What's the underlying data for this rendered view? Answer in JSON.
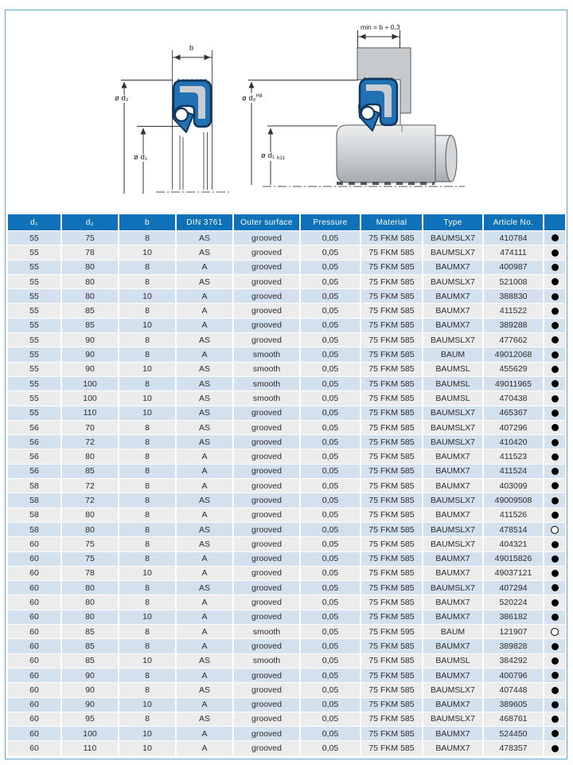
{
  "colors": {
    "header_bg": "#0f72b8",
    "row_alt_blue": "#d3e0ee",
    "row_alt_gray": "#ececec",
    "seal_blue": "#2171b5",
    "seal_outline": "#10365c",
    "metal_gray": "#c9cdd2",
    "frame_border": "#5aa9cc"
  },
  "diagram": {
    "left": {
      "b": "b",
      "d2": "ø d₂",
      "d1": "ø d₁"
    },
    "right": {
      "min": "min = b + 0,3",
      "d2": "ø d₂",
      "d2_tol": "H8",
      "d1": "ø d₁",
      "d1_tol": "h11"
    }
  },
  "table": {
    "headers": [
      "d₁",
      "d₂",
      "b",
      "DIN 3761",
      "Outer surface",
      "Pressure",
      "Material",
      "Type",
      "Article No.",
      ""
    ],
    "rows": [
      [
        "55",
        "75",
        "8",
        "AS",
        "grooved",
        "0,05",
        "75 FKM 585",
        "BAUMSLX7",
        "410784",
        "filled"
      ],
      [
        "55",
        "78",
        "10",
        "AS",
        "grooved",
        "0,05",
        "75 FKM 585",
        "BAUMSLX7",
        "474111",
        "filled"
      ],
      [
        "55",
        "80",
        "8",
        "A",
        "grooved",
        "0,05",
        "75 FKM 585",
        "BAUMX7",
        "400987",
        "filled"
      ],
      [
        "55",
        "80",
        "8",
        "AS",
        "grooved",
        "0,05",
        "75 FKM 585",
        "BAUMSLX7",
        "521008",
        "filled"
      ],
      [
        "55",
        "80",
        "10",
        "A",
        "grooved",
        "0,05",
        "75 FKM 585",
        "BAUMX7",
        "388830",
        "filled"
      ],
      [
        "55",
        "85",
        "8",
        "A",
        "grooved",
        "0,05",
        "75 FKM 585",
        "BAUMX7",
        "411522",
        "filled"
      ],
      [
        "55",
        "85",
        "10",
        "A",
        "grooved",
        "0,05",
        "75 FKM 585",
        "BAUMX7",
        "389288",
        "filled"
      ],
      [
        "55",
        "90",
        "8",
        "AS",
        "grooved",
        "0,05",
        "75 FKM 585",
        "BAUMSLX7",
        "477662",
        "filled"
      ],
      [
        "55",
        "90",
        "8",
        "A",
        "smooth",
        "0,05",
        "75 FKM 585",
        "BAUM",
        "49012068",
        "filled"
      ],
      [
        "55",
        "90",
        "10",
        "AS",
        "smooth",
        "0,05",
        "75 FKM 585",
        "BAUMSL",
        "455629",
        "filled"
      ],
      [
        "55",
        "100",
        "8",
        "AS",
        "smooth",
        "0,05",
        "75 FKM 585",
        "BAUMSL",
        "49011965",
        "filled"
      ],
      [
        "55",
        "100",
        "10",
        "AS",
        "smooth",
        "0,05",
        "75 FKM 585",
        "BAUMSL",
        "470438",
        "filled"
      ],
      [
        "55",
        "110",
        "10",
        "AS",
        "grooved",
        "0,05",
        "75 FKM 585",
        "BAUMSLX7",
        "465367",
        "filled"
      ],
      [
        "56",
        "70",
        "8",
        "AS",
        "grooved",
        "0,05",
        "75 FKM 585",
        "BAUMSLX7",
        "407296",
        "filled"
      ],
      [
        "56",
        "72",
        "8",
        "AS",
        "grooved",
        "0,05",
        "75 FKM 585",
        "BAUMSLX7",
        "410420",
        "filled"
      ],
      [
        "56",
        "80",
        "8",
        "A",
        "grooved",
        "0,05",
        "75 FKM 585",
        "BAUMX7",
        "411523",
        "filled"
      ],
      [
        "56",
        "85",
        "8",
        "A",
        "grooved",
        "0,05",
        "75 FKM 585",
        "BAUMX7",
        "411524",
        "filled"
      ],
      [
        "58",
        "72",
        "8",
        "A",
        "grooved",
        "0,05",
        "75 FKM 585",
        "BAUMX7",
        "403099",
        "filled"
      ],
      [
        "58",
        "72",
        "8",
        "AS",
        "grooved",
        "0,05",
        "75 FKM 585",
        "BAUMSLX7",
        "49009508",
        "filled"
      ],
      [
        "58",
        "80",
        "8",
        "A",
        "grooved",
        "0,05",
        "75 FKM 585",
        "BAUMX7",
        "411526",
        "filled"
      ],
      [
        "58",
        "80",
        "8",
        "AS",
        "grooved",
        "0,05",
        "75 FKM 585",
        "BAUMSLX7",
        "478514",
        "open"
      ],
      [
        "60",
        "75",
        "8",
        "AS",
        "grooved",
        "0,05",
        "75 FKM 585",
        "BAUMSLX7",
        "404321",
        "filled"
      ],
      [
        "60",
        "75",
        "8",
        "A",
        "grooved",
        "0,05",
        "75 FKM 585",
        "BAUMX7",
        "49015826",
        "filled"
      ],
      [
        "60",
        "78",
        "10",
        "A",
        "grooved",
        "0,05",
        "75 FKM 585",
        "BAUMX7",
        "49037121",
        "filled"
      ],
      [
        "60",
        "80",
        "8",
        "AS",
        "grooved",
        "0,05",
        "75 FKM 585",
        "BAUMSLX7",
        "407294",
        "filled"
      ],
      [
        "60",
        "80",
        "8",
        "A",
        "grooved",
        "0,05",
        "75 FKM 585",
        "BAUMX7",
        "520224",
        "filled"
      ],
      [
        "60",
        "80",
        "10",
        "A",
        "grooved",
        "0,05",
        "75 FKM 585",
        "BAUMX7",
        "386182",
        "filled"
      ],
      [
        "60",
        "85",
        "8",
        "A",
        "smooth",
        "0,05",
        "75 FKM 595",
        "BAUM",
        "121907",
        "open"
      ],
      [
        "60",
        "85",
        "8",
        "A",
        "grooved",
        "0,05",
        "75 FKM 585",
        "BAUMX7",
        "389828",
        "filled"
      ],
      [
        "60",
        "85",
        "10",
        "AS",
        "smooth",
        "0,05",
        "75 FKM 585",
        "BAUMSL",
        "384292",
        "filled"
      ],
      [
        "60",
        "90",
        "8",
        "A",
        "grooved",
        "0,05",
        "75 FKM 585",
        "BAUMX7",
        "400796",
        "filled"
      ],
      [
        "60",
        "90",
        "8",
        "AS",
        "grooved",
        "0,05",
        "75 FKM 585",
        "BAUMSLX7",
        "407448",
        "filled"
      ],
      [
        "60",
        "90",
        "10",
        "A",
        "grooved",
        "0,05",
        "75 FKM 585",
        "BAUMX7",
        "389605",
        "filled"
      ],
      [
        "60",
        "95",
        "8",
        "AS",
        "grooved",
        "0,05",
        "75 FKM 585",
        "BAUMSLX7",
        "468761",
        "filled"
      ],
      [
        "60",
        "100",
        "10",
        "A",
        "grooved",
        "0,05",
        "75 FKM 585",
        "BAUMX7",
        "524450",
        "filled"
      ],
      [
        "60",
        "110",
        "10",
        "A",
        "grooved",
        "0,05",
        "75 FKM 585",
        "BAUMX7",
        "478357",
        "filled"
      ]
    ]
  }
}
